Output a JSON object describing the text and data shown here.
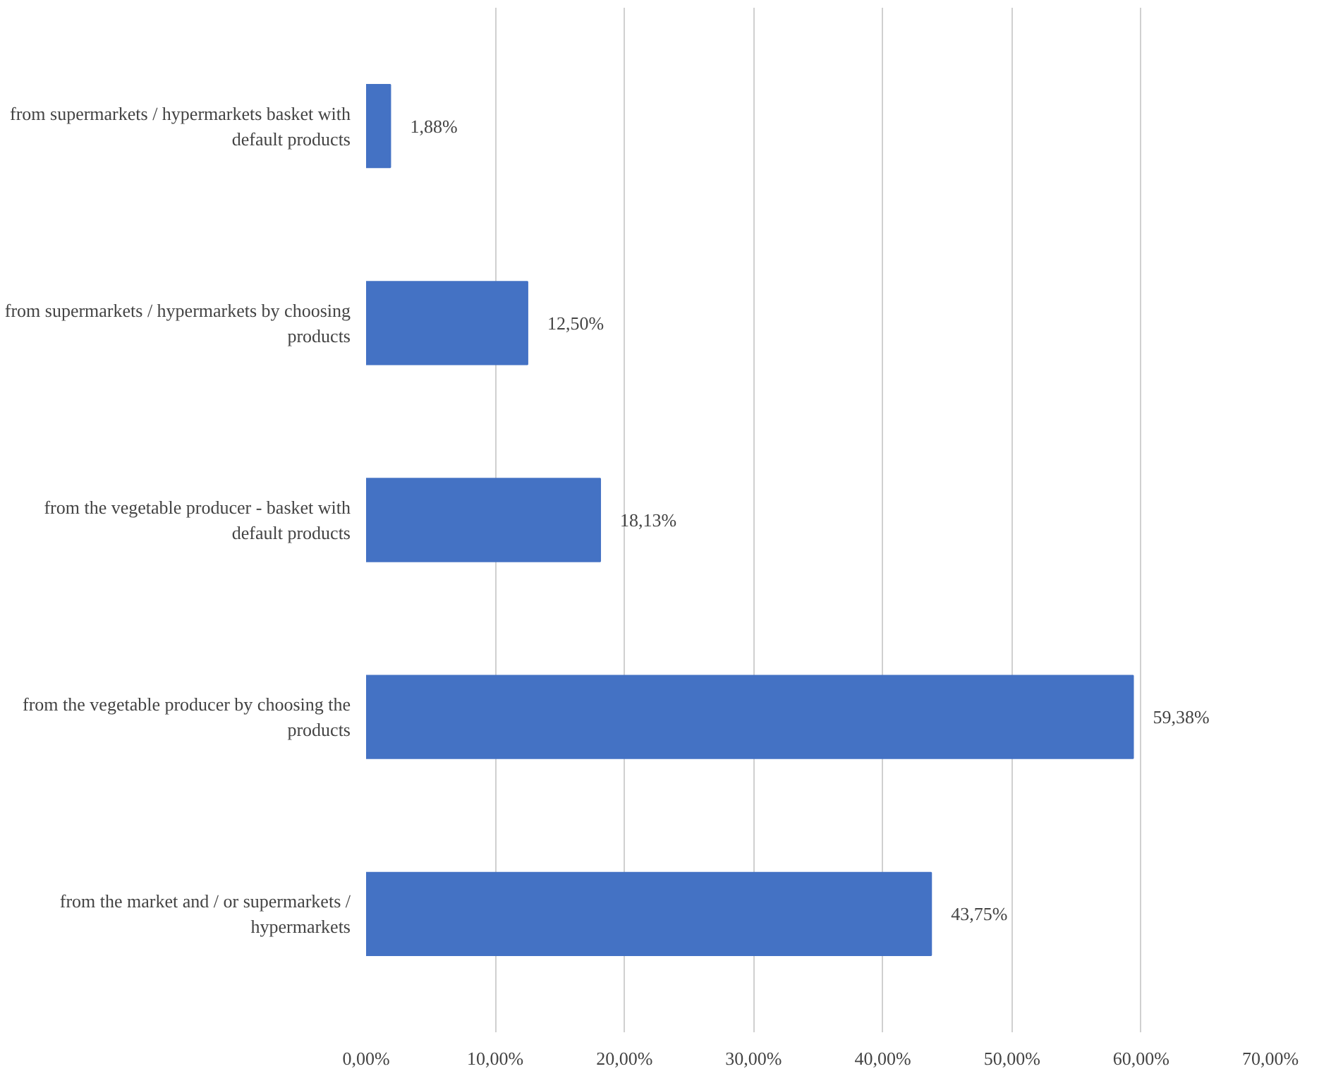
{
  "chart_data": {
    "type": "bar",
    "orientation": "horizontal",
    "categories": [
      "from supermarkets / hypermarkets basket with default products",
      "from supermarkets / hypermarkets by choosing products",
      "from the vegetable producer - basket with default products",
      "from the vegetable producer by choosing the products",
      "from the market and / or supermarkets / hypermarkets"
    ],
    "values": [
      1.88,
      12.5,
      18.13,
      59.38,
      43.75
    ],
    "value_labels": [
      "1,88%",
      "12,50%",
      "18,13%",
      "59,38%",
      "43,75%"
    ],
    "color": "#4472c4",
    "xlim": [
      0,
      70
    ],
    "xticks": [
      {
        "value": 0,
        "label": "0,00%"
      },
      {
        "value": 10,
        "label": "10,00%"
      },
      {
        "value": 20,
        "label": "20,00%"
      },
      {
        "value": 30,
        "label": "30,00%"
      },
      {
        "value": 40,
        "label": "40,00%"
      },
      {
        "value": 50,
        "label": "50,00%"
      },
      {
        "value": 60,
        "label": "60,00%"
      },
      {
        "value": 70,
        "label": "70,00%"
      }
    ],
    "grid": "x"
  }
}
